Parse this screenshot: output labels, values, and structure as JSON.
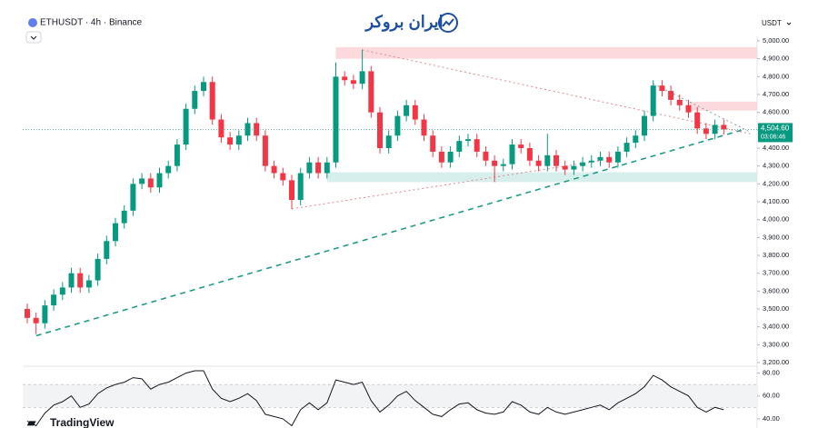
{
  "brand": "ایران بروکر",
  "watermark": "TradingView",
  "chart_data": {
    "type": "candlestick",
    "title": "ETHUSDT · 4h · Binance",
    "currency": "USDT",
    "up_color": "#089981",
    "down_color": "#f23645",
    "open": [
      3500,
      3450,
      3420,
      3520,
      3580,
      3620,
      3700,
      3620,
      3660,
      3780,
      3880,
      3980,
      4050,
      4200,
      4230,
      4180,
      4260,
      4300,
      4420,
      4620,
      4720,
      4770,
      4560,
      4460,
      4420,
      4470,
      4540,
      4470,
      4300,
      4260,
      4220,
      4110,
      4260,
      4320,
      4260,
      4320,
      4800,
      4780,
      4760,
      4830,
      4600,
      4400,
      4470,
      4580,
      4640,
      4560,
      4470,
      4380,
      4320,
      4380,
      4440,
      4450,
      4380,
      4330,
      4300,
      4310,
      4420,
      4400,
      4330,
      4300,
      4360,
      4300,
      4280,
      4300,
      4320,
      4330,
      4350,
      4320,
      4380,
      4430,
      4470,
      4580,
      4750,
      4720,
      4670,
      4640,
      4600,
      4510,
      4480,
      4530
    ],
    "high": [
      3530,
      3480,
      3550,
      3610,
      3650,
      3730,
      3730,
      3690,
      3810,
      3910,
      4010,
      4080,
      4230,
      4260,
      4260,
      4290,
      4330,
      4450,
      4650,
      4750,
      4800,
      4800,
      4590,
      4490,
      4500,
      4570,
      4570,
      4500,
      4330,
      4290,
      4250,
      4290,
      4350,
      4350,
      4350,
      4880,
      4830,
      4810,
      4950,
      4860,
      4630,
      4500,
      4610,
      4670,
      4670,
      4590,
      4500,
      4410,
      4410,
      4470,
      4480,
      4480,
      4410,
      4360,
      4340,
      4450,
      4450,
      4430,
      4360,
      4480,
      4390,
      4330,
      4330,
      4350,
      4360,
      4380,
      4380,
      4410,
      4460,
      4500,
      4610,
      4780,
      4780,
      4750,
      4700,
      4670,
      4630,
      4540,
      4560,
      4560
    ],
    "low": [
      3420,
      3360,
      3390,
      3490,
      3550,
      3590,
      3590,
      3590,
      3630,
      3750,
      3850,
      3950,
      4020,
      4170,
      4150,
      4150,
      4230,
      4270,
      4390,
      4590,
      4690,
      4530,
      4430,
      4390,
      4390,
      4440,
      4440,
      4270,
      4230,
      4190,
      4060,
      4080,
      4230,
      4230,
      4230,
      4290,
      4750,
      4730,
      4730,
      4570,
      4370,
      4370,
      4440,
      4550,
      4530,
      4440,
      4350,
      4290,
      4290,
      4350,
      4410,
      4350,
      4300,
      4210,
      4270,
      4280,
      4370,
      4300,
      4270,
      4270,
      4270,
      4250,
      4250,
      4270,
      4290,
      4300,
      4290,
      4290,
      4350,
      4400,
      4440,
      4550,
      4690,
      4640,
      4610,
      4570,
      4480,
      4450,
      4450,
      4475
    ],
    "close": [
      3450,
      3420,
      3520,
      3580,
      3620,
      3700,
      3620,
      3660,
      3780,
      3880,
      3980,
      4050,
      4200,
      4230,
      4180,
      4260,
      4300,
      4420,
      4620,
      4720,
      4770,
      4560,
      4460,
      4420,
      4470,
      4540,
      4470,
      4300,
      4260,
      4220,
      4110,
      4260,
      4320,
      4260,
      4320,
      4800,
      4780,
      4760,
      4830,
      4600,
      4400,
      4470,
      4580,
      4640,
      4560,
      4470,
      4380,
      4320,
      4380,
      4440,
      4450,
      4380,
      4330,
      4300,
      4310,
      4420,
      4400,
      4330,
      4300,
      4360,
      4300,
      4280,
      4300,
      4320,
      4330,
      4350,
      4320,
      4380,
      4430,
      4470,
      4580,
      4750,
      4720,
      4670,
      4640,
      4600,
      4510,
      4480,
      4530,
      4505
    ],
    "ylim": [
      3200,
      5000
    ],
    "yticks": [
      {
        "value": 5000,
        "label": "5,000.00"
      },
      {
        "value": 4900,
        "label": "4,900.00"
      },
      {
        "value": 4800,
        "label": "4,800.00"
      },
      {
        "value": 4700,
        "label": "4,700.00"
      },
      {
        "value": 4600,
        "label": "4,600.00"
      },
      {
        "value": 4500,
        "label": "4,500.00"
      },
      {
        "value": 4400,
        "label": "4,400.00"
      },
      {
        "value": 4300,
        "label": "4,300.00"
      },
      {
        "value": 4200,
        "label": "4,200.00"
      },
      {
        "value": 4100,
        "label": "4,100.00"
      },
      {
        "value": 4000,
        "label": "4,000.00"
      },
      {
        "value": 3900,
        "label": "3,900.00"
      },
      {
        "value": 3800,
        "label": "3,800.00"
      },
      {
        "value": 3700,
        "label": "3,700.00"
      },
      {
        "value": 3600,
        "label": "3,600.00"
      },
      {
        "value": 3500,
        "label": "3,500.00"
      },
      {
        "value": 3400,
        "label": "3,400.00"
      },
      {
        "value": 3300,
        "label": "3,300.00"
      },
      {
        "value": 3200,
        "label": "3,200.00"
      }
    ],
    "last_price": {
      "value": 4504.6,
      "label": "4,504.60"
    },
    "countdown": "03:06:46",
    "zones": [
      {
        "from": 4900,
        "to": 4965,
        "start": 35,
        "color": "#fcd9dc"
      },
      {
        "from": 4610,
        "to": 4660,
        "start": 75,
        "color": "#fcd9dc"
      },
      {
        "from": 4210,
        "to": 4265,
        "start": 34,
        "color": "#d7efec"
      }
    ],
    "trendlines": [
      {
        "x": [
          1,
          81
        ],
        "y": [
          3350,
          4500
        ],
        "color": "#1f9c87",
        "dash": "6,5",
        "width": 1.6
      },
      {
        "x": [
          38,
          82
        ],
        "y": [
          4950,
          4480
        ],
        "color": "#e2868e",
        "dash": "2,3",
        "width": 1
      },
      {
        "x": [
          30,
          65
        ],
        "y": [
          4060,
          4330
        ],
        "color": "#e2868e",
        "dash": "2,3",
        "width": 1
      },
      {
        "x": [
          71,
          82
        ],
        "y": [
          4760,
          4490
        ],
        "color": "#8aa0a0",
        "dash": "2,3",
        "width": 1
      }
    ],
    "rsi": {
      "values": [
        38,
        34,
        45,
        52,
        55,
        60,
        50,
        53,
        62,
        67,
        70,
        72,
        76,
        75,
        66,
        70,
        72,
        76,
        80,
        82,
        82,
        66,
        58,
        55,
        58,
        62,
        56,
        44,
        42,
        40,
        34,
        48,
        54,
        48,
        54,
        74,
        72,
        70,
        72,
        56,
        46,
        52,
        60,
        64,
        56,
        50,
        44,
        42,
        48,
        53,
        54,
        48,
        45,
        44,
        46,
        55,
        52,
        46,
        44,
        50,
        46,
        44,
        46,
        48,
        50,
        52,
        48,
        54,
        58,
        62,
        68,
        78,
        74,
        68,
        64,
        60,
        50,
        46,
        50,
        48
      ],
      "ylim": [
        32,
        86
      ],
      "yticks": [
        {
          "value": 80,
          "label": "80.00"
        },
        {
          "value": 60,
          "label": "60.00"
        },
        {
          "value": 40,
          "label": "40.00"
        }
      ],
      "band": [
        50,
        70
      ]
    }
  }
}
